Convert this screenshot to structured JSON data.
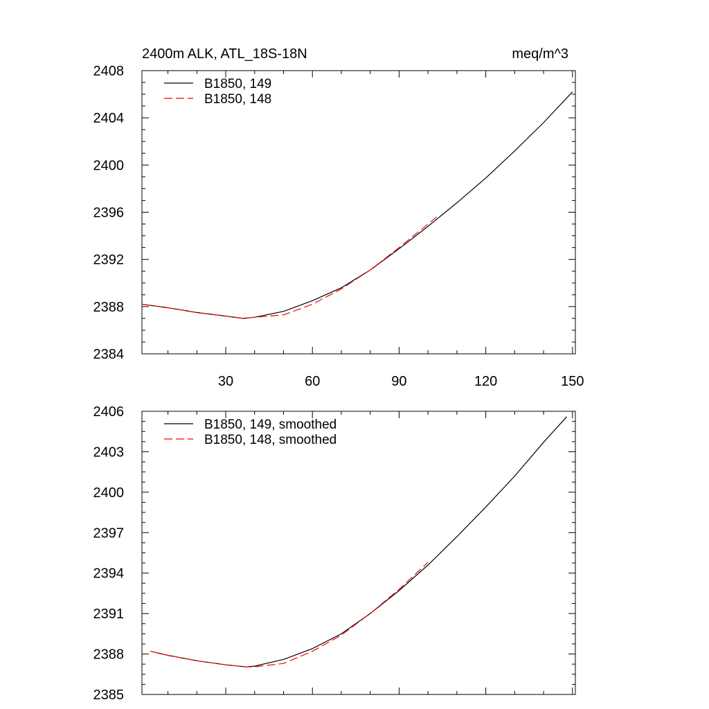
{
  "chart_data": [
    {
      "type": "line",
      "title_left": "2400m ALK, ATL_18S-18N",
      "title_right": "meq/m^3",
      "xlabel": "",
      "ylabel": "",
      "xlim": [
        1,
        151
      ],
      "ylim": [
        2384,
        2408
      ],
      "xticks": [
        30,
        60,
        90,
        120,
        150
      ],
      "xtick_labels": [
        "30",
        "60",
        "90",
        "120",
        "150"
      ],
      "yticks": [
        2384,
        2388,
        2392,
        2396,
        2400,
        2404,
        2408
      ],
      "ytick_labels": [
        "2384",
        "2388",
        "2392",
        "2396",
        "2400",
        "2404",
        "2408"
      ],
      "legend_position": "top-left",
      "series": [
        {
          "name": "B1850, 149",
          "color": "#000000",
          "dash": "solid",
          "x": [
            1,
            10,
            20,
            30,
            36,
            40,
            50,
            60,
            70,
            80,
            90,
            100,
            110,
            120,
            130,
            140,
            150
          ],
          "y": [
            2388.2,
            2387.9,
            2387.5,
            2387.2,
            2387.0,
            2387.1,
            2387.6,
            2388.5,
            2389.6,
            2391.1,
            2392.9,
            2394.8,
            2396.8,
            2398.9,
            2401.2,
            2403.6,
            2406.2
          ]
        },
        {
          "name": "B1850, 148",
          "color": "#ff0000",
          "dash": "dashed",
          "x": [
            1,
            10,
            20,
            30,
            36,
            40,
            50,
            60,
            70,
            80,
            90,
            100,
            103
          ],
          "y": [
            2388.2,
            2387.9,
            2387.5,
            2387.2,
            2387.0,
            2387.1,
            2387.3,
            2388.2,
            2389.5,
            2391.1,
            2393.0,
            2395.0,
            2395.6
          ]
        }
      ]
    },
    {
      "type": "line",
      "title_left": "",
      "title_right": "",
      "xlabel": "",
      "ylabel": "",
      "xlim": [
        1,
        151
      ],
      "ylim": [
        2385,
        2406
      ],
      "xticks": [
        30,
        60,
        90,
        120,
        150
      ],
      "xtick_labels": [],
      "yticks": [
        2385,
        2388,
        2391,
        2394,
        2397,
        2400,
        2403,
        2406
      ],
      "ytick_labels": [
        "2385",
        "2388",
        "2391",
        "2394",
        "2397",
        "2400",
        "2403",
        "2406"
      ],
      "legend_position": "top-left",
      "series": [
        {
          "name": "B1850, 149, smoothed",
          "color": "#000000",
          "dash": "solid",
          "x": [
            4,
            10,
            20,
            30,
            37,
            40,
            50,
            60,
            70,
            80,
            90,
            100,
            110,
            120,
            130,
            140,
            148
          ],
          "y": [
            2388.2,
            2387.9,
            2387.5,
            2387.2,
            2387.05,
            2387.1,
            2387.6,
            2388.4,
            2389.5,
            2391.0,
            2392.7,
            2394.6,
            2396.7,
            2398.9,
            2401.2,
            2403.7,
            2405.6
          ]
        },
        {
          "name": "B1850, 148, smoothed",
          "color": "#ff0000",
          "dash": "dashed",
          "x": [
            4,
            10,
            20,
            30,
            37,
            40,
            50,
            60,
            70,
            80,
            90,
            100
          ],
          "y": [
            2388.2,
            2387.9,
            2387.5,
            2387.2,
            2387.05,
            2387.05,
            2387.3,
            2388.2,
            2389.4,
            2391.0,
            2392.8,
            2394.8
          ]
        }
      ]
    }
  ]
}
